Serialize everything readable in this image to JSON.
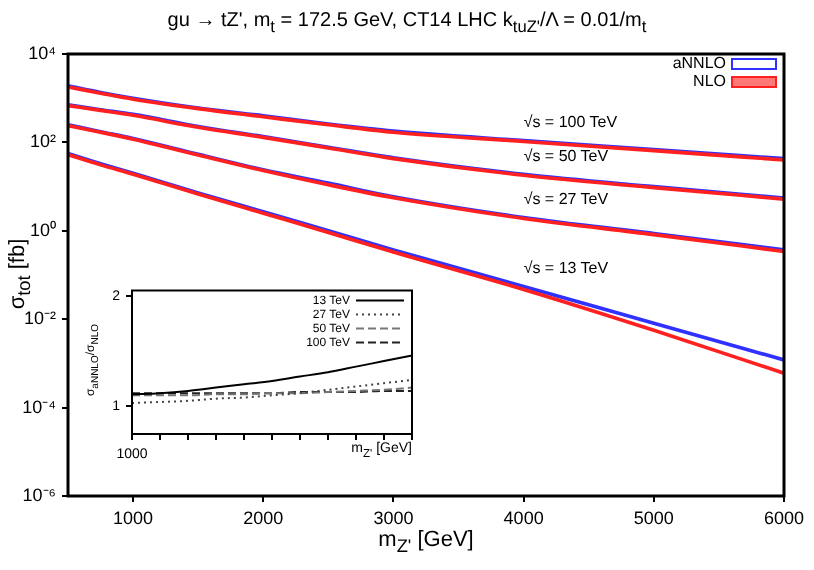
{
  "chart_data": [
    {
      "type": "line",
      "title": "gu → tZ', m$_{t}$ = 172.5 GeV, CT14 LHC k$_{tuZ'}$/Λ = 0.01/m$_{t}$",
      "xlabel": "m$_{Z'}$ [GeV]",
      "ylabel": "σ$_{tot}$ [fb]",
      "log": "y",
      "legend": "top right",
      "marker": "none",
      "grid": false,
      "x": [
        500,
        750,
        1000,
        1500,
        2000,
        2500,
        3000,
        4000,
        5000,
        6000
      ],
      "xlim": [
        500,
        6000
      ],
      "xticks": [
        1000,
        2000,
        3000,
        4000,
        5000,
        6000
      ],
      "ylim": [
        1e-06,
        10000
      ],
      "yticks": [
        {
          "value": 1e-06,
          "label": "10⁻⁶"
        },
        {
          "value": 0.0001,
          "label": "10⁻⁴"
        },
        {
          "value": 0.01,
          "label": "10⁻²"
        },
        {
          "value": 1,
          "label": "10⁰"
        },
        {
          "value": 100,
          "label": "10²"
        },
        {
          "value": 10000,
          "label": "10⁴"
        }
      ],
      "series": [
        {
          "name": "NLO",
          "color": "#ff2020",
          "values": [
            1800,
            1300,
            950,
            580,
            380,
            250,
            170,
            105,
            65,
            40
          ]
        },
        {
          "color": "#ff2020",
          "values": [
            680,
            530,
            410,
            220,
            130,
            75,
            43,
            18,
            9.5,
            5.2
          ]
        },
        {
          "color": "#ff2020",
          "values": [
            240,
            170,
            118,
            52,
            23,
            11,
            5.6,
            1.9,
            0.82,
            0.34
          ]
        },
        {
          "color": "#ff2020",
          "values": [
            53,
            31,
            19,
            6.8,
            2.5,
            0.92,
            0.33,
            0.047,
            0.0056,
            0.0006
          ]
        },
        {
          "name": "aNNLO",
          "color": "#3030ff",
          "values": [
            1900,
            1350,
            1000,
            600,
            400,
            260,
            180,
            110,
            69,
            43
          ]
        },
        {
          "color": "#3030ff",
          "values": [
            710,
            550,
            430,
            230,
            135,
            78,
            45,
            19,
            10,
            5.5
          ]
        },
        {
          "color": "#3030ff",
          "values": [
            250,
            175,
            123,
            54,
            24,
            12,
            5.9,
            2.0,
            0.87,
            0.37
          ]
        },
        {
          "color": "#3030ff",
          "values": [
            56,
            33,
            20,
            7.2,
            2.7,
            1.0,
            0.37,
            0.055,
            0.0081,
            0.0012
          ]
        }
      ],
      "annotations": [
        "√s = 100 TeV",
        "√s = 50 TeV",
        "√s = 27 TeV",
        "√s = 13 TeV"
      ]
    },
    {
      "type": "line",
      "xlabel": "m$_{Z'}$ [GeV]",
      "ylabel": "σ$_{aNNLO}$/σ$_{NLO}$",
      "legend": "top right",
      "marker": "none",
      "grid": false,
      "categories": [
        "1000",
        null,
        null,
        null,
        null,
        null,
        null,
        null,
        null,
        null,
        null
      ],
      "ylim": [
        0.75,
        2.05
      ],
      "yticks": [
        1,
        2
      ],
      "series": [
        {
          "name": "13 TeV",
          "color": "#000000",
          "line_style": "solid",
          "values": [
            1.11,
            1.12,
            1.14,
            1.17,
            1.2,
            1.23,
            1.27,
            1.31,
            1.36,
            1.41,
            1.46
          ]
        },
        {
          "name": "27 TeV",
          "color": "#444444",
          "line_style": "dotted",
          "values": [
            1.03,
            1.04,
            1.05,
            1.07,
            1.08,
            1.1,
            1.12,
            1.15,
            1.18,
            1.21,
            1.24
          ]
        },
        {
          "name": "50 TeV",
          "color": "#777777",
          "line_style": "dashed",
          "values": [
            1.1,
            1.1,
            1.1,
            1.11,
            1.11,
            1.12,
            1.12,
            1.13,
            1.14,
            1.15,
            1.17
          ]
        },
        {
          "name": "100 TeV",
          "color": "#222222",
          "line_style": "dashed",
          "values": [
            1.12,
            1.12,
            1.12,
            1.12,
            1.12,
            1.12,
            1.13,
            1.13,
            1.13,
            1.14,
            1.14
          ]
        }
      ]
    }
  ]
}
